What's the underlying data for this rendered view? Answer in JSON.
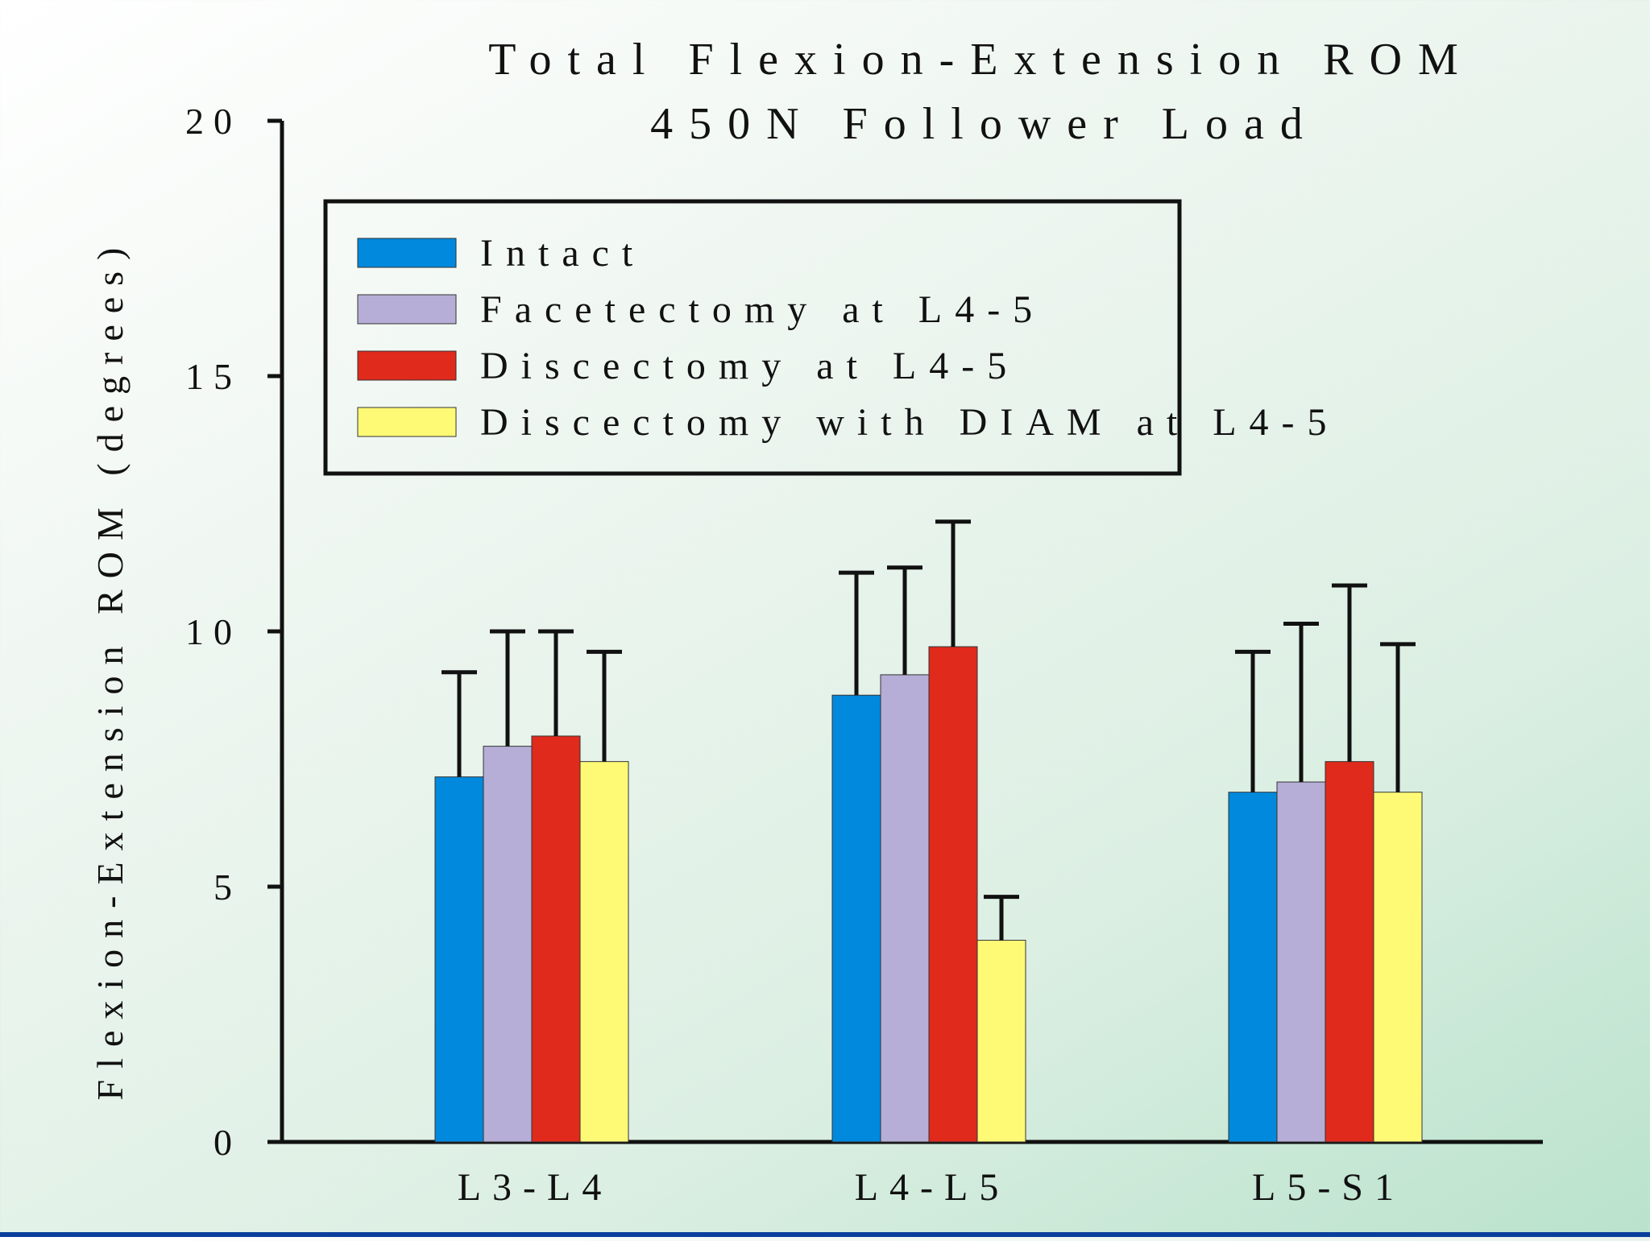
{
  "chart_data": {
    "type": "bar",
    "title": "Total Flexion-Extension ROM",
    "subtitle": "450N Follower Load",
    "xlabel": "",
    "ylabel": "Flexion-Extension ROM (degrees)",
    "ylim": [
      0,
      20
    ],
    "yticks": [
      0,
      5,
      10,
      15,
      20
    ],
    "categories": [
      "L3-L4",
      "L4-L5",
      "L5-S1"
    ],
    "legend_position": "top-left",
    "grid": false,
    "series": [
      {
        "name": "Intact",
        "color": "#0089dd",
        "values": [
          7.15,
          8.75,
          6.85
        ],
        "error_upper": [
          9.2,
          11.15,
          9.6
        ]
      },
      {
        "name": "Facetectomy at L4-5",
        "color": "#b6aed6",
        "values": [
          7.75,
          9.15,
          7.05
        ],
        "error_upper": [
          10.0,
          11.25,
          10.15
        ]
      },
      {
        "name": "Discectomy at L4-5",
        "color": "#e02a1c",
        "values": [
          7.95,
          9.7,
          7.45
        ],
        "error_upper": [
          10.0,
          12.15,
          10.9
        ]
      },
      {
        "name": "Discectomy with DIAM at L4-5",
        "color": "#fffa75",
        "values": [
          7.45,
          3.95,
          6.85
        ],
        "error_upper": [
          9.6,
          4.8,
          9.75
        ]
      }
    ]
  }
}
